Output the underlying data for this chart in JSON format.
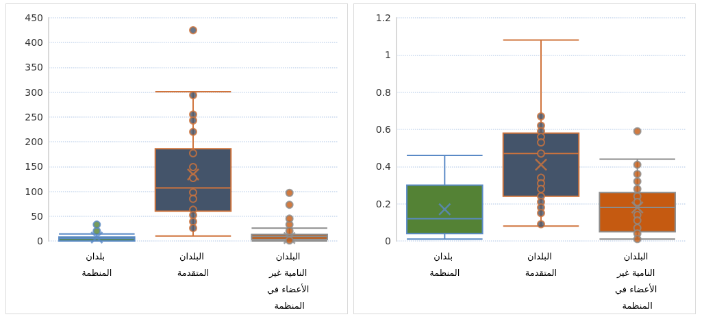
{
  "chart_data": [
    {
      "type": "box",
      "categories": [
        "بلدان المنظمة",
        "البلدان المتقدمة",
        "البلدان النامية غير الأعضاء في المنظمة"
      ],
      "ylim": [
        0,
        450
      ],
      "yticks": [
        0,
        50,
        100,
        150,
        200,
        250,
        300,
        350,
        400,
        450
      ],
      "grid": "y",
      "colors": [
        "#548235",
        "#44546a",
        "#c55a11"
      ],
      "boxes": [
        {
          "low": 0,
          "q1": 0,
          "median": 5,
          "q3": 8,
          "high": 14,
          "mean": 7,
          "outliers": [
            20,
            33
          ]
        },
        {
          "low": 10,
          "q1": 60,
          "median": 107,
          "q3": 186,
          "high": 301,
          "mean": 134,
          "outliers": [
            425
          ]
        },
        {
          "low": 0,
          "q1": 3,
          "median": 9,
          "q3": 13,
          "high": 26,
          "mean": 6,
          "outliers": [
            33,
            45,
            73,
            97
          ]
        }
      ],
      "series": [
        {
          "type": "scatter",
          "color": "#d0743c",
          "x": [
            "البلدان المتقدمة",
            "البلدان المتقدمة",
            "البلدان المتقدمة",
            "البلدان المتقدمة",
            "البلدان المتقدمة",
            "البلدان المتقدمة",
            "البلدان المتقدمة",
            "البلدان المتقدمة",
            "البلدان المتقدمة",
            "البلدان المتقدمة",
            "البلدان المتقدمة",
            "البلدان المتقدمة",
            "البلدان المتقدمة"
          ],
          "values": [
            294,
            255,
            243,
            220,
            177,
            149,
            127,
            98,
            85,
            63,
            52,
            39,
            26
          ]
        },
        {
          "type": "scatter",
          "color": "#8c8c8c",
          "x": [
            "البلدان النامية غير الأعضاء في المنظمة",
            "البلدان النامية غير الأعضاء في المنظمة"
          ],
          "values": [
            20,
            1
          ]
        }
      ]
    },
    {
      "type": "box",
      "categories": [
        "بلدان المنظمة",
        "البلدان المتقدمة",
        "البلدان النامية غير الأعضاء في المنظمة"
      ],
      "ylim": [
        0,
        1.2
      ],
      "yticks": [
        0,
        0.2,
        0.4,
        0.6,
        0.8,
        1,
        1.2
      ],
      "grid": "y",
      "colors": [
        "#548235",
        "#44546a",
        "#c55a11"
      ],
      "boxes": [
        {
          "low": 0.01,
          "q1": 0.04,
          "median": 0.12,
          "q3": 0.3,
          "high": 0.46,
          "mean": 0.17
        },
        {
          "low": 0.08,
          "q1": 0.24,
          "median": 0.47,
          "q3": 0.58,
          "high": 1.08,
          "mean": 0.41
        },
        {
          "low": 0.01,
          "q1": 0.05,
          "median": 0.18,
          "q3": 0.26,
          "high": 0.44,
          "mean": 0.18,
          "outliers": [
            0.59
          ]
        }
      ],
      "series": [
        {
          "type": "scatter",
          "color": "#d0743c",
          "x": [
            "البلدان المتقدمة",
            "البلدان المتقدمة",
            "البلدان المتقدمة",
            "البلدان المتقدمة",
            "البلدان المتقدمة",
            "البلدان المتقدمة",
            "البلدان المتقدمة",
            "البلدان المتقدمة",
            "البلدان المتقدمة",
            "البلدان المتقدمة",
            "البلدان المتقدمة",
            "البلدان المتقدمة",
            "البلدان المتقدمة",
            "البلدان المتقدمة"
          ],
          "values": [
            0.67,
            0.62,
            0.59,
            0.56,
            0.53,
            0.47,
            0.34,
            0.31,
            0.28,
            0.24,
            0.21,
            0.18,
            0.15,
            0.09
          ]
        },
        {
          "type": "scatter",
          "color": "#8c8c8c",
          "x": [
            "البلدان النامية غير الأعضاء في المنظمة",
            "البلدان النامية غير الأعضاء في المنظمة",
            "البلدان النامية غير الأعضاء في المنظمة",
            "البلدان النامية غير الأعضاء في المنظمة",
            "البلدان النامية غير الأعضاء في المنظمة",
            "البلدان النامية غير الأعضاء في المنظمة",
            "البلدان النامية غير الأعضاء في المنظمة",
            "البلدان النامية غير الأعضاء في المنظمة",
            "البلدان النامية غير الأعضاء في المنظمة",
            "البلدان النامية غير الأعضاء في المنظمة",
            "البلدان النامية غير الأعضاء في المنظمة"
          ],
          "values": [
            0.41,
            0.36,
            0.32,
            0.28,
            0.24,
            0.21,
            0.14,
            0.11,
            0.07,
            0.04,
            0.01
          ]
        }
      ]
    }
  ]
}
